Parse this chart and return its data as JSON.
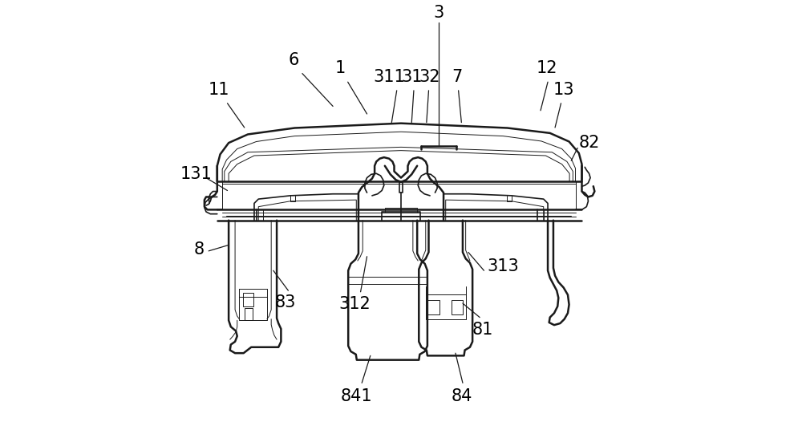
{
  "background_color": "#ffffff",
  "line_color": "#1a1a1a",
  "label_color": "#000000",
  "fig_width": 10.0,
  "fig_height": 5.36
}
